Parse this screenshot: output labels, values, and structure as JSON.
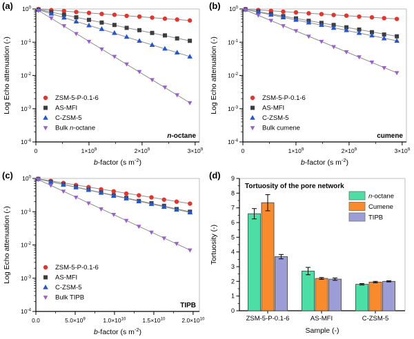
{
  "colors": {
    "red": "#e73328",
    "dark_gray": "#3d3d3d",
    "blue": "#2156d9",
    "violet": "#9b5ed2",
    "fit_line": "#8b8b8b",
    "mint": "#4cdfa5",
    "orange": "#f98b2c",
    "lavender": "#9c9cd6",
    "bar_outline": "#4d4d4d",
    "box_light": "#bcbcbc",
    "axis": "#000000"
  },
  "chart_data": [
    {
      "id": "a",
      "type": "scatter",
      "panel_label": "(a)",
      "annotation": "n-octane",
      "ylabel": "Log Echo attenuation (-)",
      "xlabel": {
        "italic": "b",
        "main": "-factor (s m",
        "sup": "-2",
        "tail": ")"
      },
      "xlim": [
        0,
        3080000000.0
      ],
      "xticks": [
        {
          "v": 0,
          "label": "0"
        },
        {
          "v": 1000000000.0,
          "label": "1×10^9"
        },
        {
          "v": 2000000000.0,
          "label": "2×10^9"
        },
        {
          "v": 3000000000.0,
          "label": "3×10^9"
        }
      ],
      "ydecades": [
        0,
        -1,
        -2,
        -3,
        -4
      ],
      "x": [
        50000000.0,
        290000000.0,
        530000000.0,
        760000000.0,
        1000000000.0,
        1240000000.0,
        1480000000.0,
        1710000000.0,
        1950000000.0,
        2190000000.0,
        2430000000.0,
        2660000000.0,
        2900000000.0
      ],
      "series": [
        {
          "name": "ZSM-5-P-0.1-6",
          "marker": "circle",
          "color_key": "red",
          "values": [
            0.99,
            0.92,
            0.87,
            0.81,
            0.76,
            0.71,
            0.67,
            0.62,
            0.59,
            0.55,
            0.51,
            0.48,
            0.45
          ]
        },
        {
          "name": "AS-MFI",
          "marker": "square",
          "color_key": "dark_gray",
          "values": [
            0.96,
            0.8,
            0.67,
            0.56,
            0.47,
            0.39,
            0.33,
            0.27,
            0.23,
            0.19,
            0.16,
            0.13,
            0.11
          ]
        },
        {
          "name": "C-ZSM-5",
          "marker": "triangle_up",
          "color_key": "blue",
          "values": [
            0.94,
            0.72,
            0.55,
            0.42,
            0.32,
            0.25,
            0.19,
            0.145,
            0.11,
            0.083,
            0.064,
            0.049,
            0.037
          ]
        },
        {
          "name": "Bulk n-octane",
          "marker": "triangle_down",
          "color_key": "violet",
          "values": [
            0.89,
            0.53,
            0.31,
            0.18,
            0.105,
            0.062,
            0.037,
            0.022,
            0.013,
            0.0074,
            0.0044,
            0.0026,
            0.0015
          ]
        }
      ]
    },
    {
      "id": "b",
      "type": "scatter",
      "panel_label": "(b)",
      "annotation": "cumene",
      "ylabel": "Log Echo attenuation (-)",
      "xlabel": {
        "italic": "b",
        "main": "-factor (s m",
        "sup": "-2",
        "tail": ")"
      },
      "xlim": [
        0,
        3080000000.0
      ],
      "xticks": [
        {
          "v": 0,
          "label": "0"
        },
        {
          "v": 1000000000.0,
          "label": "1×10^9"
        },
        {
          "v": 2000000000.0,
          "label": "2×10^9"
        },
        {
          "v": 3000000000.0,
          "label": "3×10^9"
        }
      ],
      "ydecades": [
        0,
        -1,
        -2,
        -3,
        -4
      ],
      "x": [
        50000000.0,
        290000000.0,
        530000000.0,
        760000000.0,
        1000000000.0,
        1240000000.0,
        1480000000.0,
        1710000000.0,
        1950000000.0,
        2190000000.0,
        2430000000.0,
        2660000000.0,
        2900000000.0
      ],
      "series": [
        {
          "name": "ZSM-5-P-0.1-6",
          "marker": "circle",
          "color_key": "red",
          "values": [
            0.99,
            0.93,
            0.88,
            0.83,
            0.79,
            0.74,
            0.7,
            0.66,
            0.63,
            0.59,
            0.56,
            0.53,
            0.5
          ]
        },
        {
          "name": "AS-MFI",
          "marker": "square",
          "color_key": "dark_gray",
          "values": [
            0.97,
            0.83,
            0.71,
            0.61,
            0.52,
            0.44,
            0.38,
            0.33,
            0.28,
            0.24,
            0.2,
            0.17,
            0.15
          ]
        },
        {
          "name": "C-ZSM-5",
          "marker": "triangle_up",
          "color_key": "blue",
          "values": [
            0.96,
            0.8,
            0.67,
            0.56,
            0.47,
            0.39,
            0.33,
            0.27,
            0.23,
            0.19,
            0.16,
            0.13,
            0.11
          ]
        },
        {
          "name": "Bulk cumene",
          "marker": "triangle_down",
          "color_key": "violet",
          "values": [
            0.93,
            0.65,
            0.45,
            0.31,
            0.22,
            0.15,
            0.105,
            0.073,
            0.051,
            0.036,
            0.025,
            0.017,
            0.012
          ]
        }
      ]
    },
    {
      "id": "c",
      "type": "scatter",
      "panel_label": "(c)",
      "annotation": "TIPB",
      "ylabel": "Log Echo attenuation (-)",
      "xlabel": {
        "italic": "b",
        "main": "-factor (s m",
        "sup": "-2",
        "tail": ")"
      },
      "xlim": [
        0,
        20800000000.0
      ],
      "xticks": [
        {
          "v": 0,
          "label": "0.0"
        },
        {
          "v": 5000000000.0,
          "label": "5.0×10^9"
        },
        {
          "v": 10000000000.0,
          "label": "1.0×10^10"
        },
        {
          "v": 15000000000.0,
          "label": "1.5×10^10"
        },
        {
          "v": 20000000000.0,
          "label": "2.0×10^10"
        }
      ],
      "ydecades": [
        0,
        -1,
        -2,
        -3,
        -4
      ],
      "x": [
        300000000.0,
        1900000000.0,
        3500000000.0,
        5100000000.0,
        6700000000.0,
        8300000000.0,
        9900000000.0,
        11500000000.0,
        13100000000.0,
        14700000000.0,
        16300000000.0,
        17900000000.0,
        19600000000.0
      ],
      "series": [
        {
          "name": "ZSM-5-P-0.1-6",
          "marker": "circle",
          "color_key": "red",
          "values": [
            0.97,
            0.84,
            0.73,
            0.63,
            0.55,
            0.47,
            0.41,
            0.35,
            0.31,
            0.27,
            0.23,
            0.2,
            0.175
          ]
        },
        {
          "name": "AS-MFI",
          "marker": "square",
          "color_key": "dark_gray",
          "values": [
            0.97,
            0.8,
            0.66,
            0.55,
            0.46,
            0.38,
            0.31,
            0.26,
            0.21,
            0.18,
            0.15,
            0.12,
            0.1
          ]
        },
        {
          "name": "C-ZSM-5",
          "marker": "triangle_up",
          "color_key": "blue",
          "values": [
            0.96,
            0.79,
            0.65,
            0.54,
            0.45,
            0.37,
            0.3,
            0.25,
            0.205,
            0.17,
            0.14,
            0.115,
            0.095
          ]
        },
        {
          "name": "Bulk TIPB",
          "marker": "triangle_down",
          "color_key": "violet",
          "values": [
            0.93,
            0.62,
            0.41,
            0.27,
            0.18,
            0.12,
            0.082,
            0.054,
            0.036,
            0.024,
            0.016,
            0.011,
            0.007
          ]
        }
      ]
    },
    {
      "id": "d",
      "type": "bar",
      "panel_label": "(d)",
      "title": "Tortuosity of the pore network",
      "ylabel": "Tortuosity (-)",
      "xlabel_plain": "Sample (-)",
      "ylim": [
        0,
        9
      ],
      "categories": [
        "ZSM-5-P-0.1-6",
        "AS-MFI",
        "C-ZSM-5"
      ],
      "series": [
        {
          "name": "n-octane",
          "color_key": "mint",
          "values": [
            6.6,
            2.7,
            1.8
          ],
          "errors": [
            0.35,
            0.25,
            0.05
          ]
        },
        {
          "name": "Cumene",
          "color_key": "orange",
          "values": [
            7.35,
            2.2,
            1.95
          ],
          "errors": [
            0.55,
            0.06,
            0.05
          ]
        },
        {
          "name": "TIPB",
          "color_key": "lavender",
          "values": [
            3.68,
            2.15,
            2.0
          ],
          "errors": [
            0.15,
            0.08,
            0.04
          ]
        }
      ]
    }
  ]
}
